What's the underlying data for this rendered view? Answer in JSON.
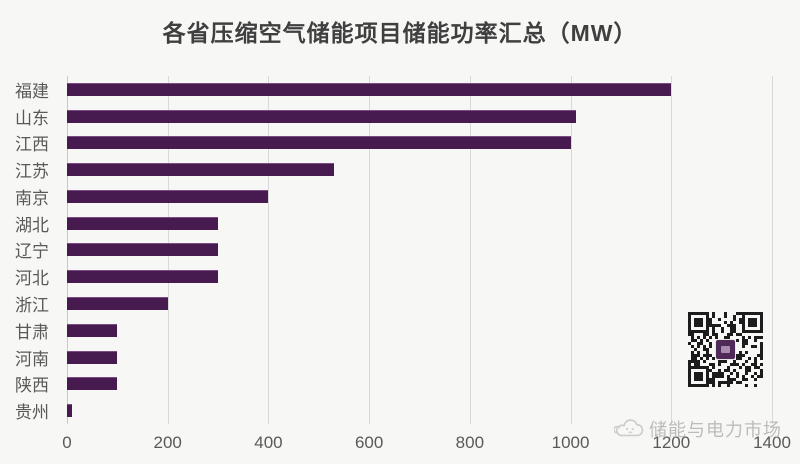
{
  "chart_data": {
    "type": "bar",
    "orientation": "horizontal",
    "title": "各省压缩空气储能项目储能功率汇总（MW）",
    "categories": [
      "福建",
      "山东",
      "江西",
      "江苏",
      "南京",
      "湖北",
      "辽宁",
      "河北",
      "浙江",
      "甘肃",
      "河南",
      "陕西",
      "贵州"
    ],
    "values": [
      1200,
      1010,
      1000,
      530,
      400,
      300,
      300,
      300,
      200,
      100,
      100,
      100,
      10
    ],
    "xlabel": "",
    "ylabel": "",
    "xlim": [
      0,
      1400
    ],
    "xticks": [
      0,
      200,
      400,
      600,
      800,
      1000,
      1200,
      1400
    ],
    "grid": true,
    "legend_position": "none"
  },
  "watermark": {
    "text": "储能与电力市场"
  },
  "qr": {
    "label": "wechat-qr-code"
  },
  "colors": {
    "background": "#f7f7f5",
    "bar": "#471b50",
    "bar_highlight": "#7d4a86",
    "gridline": "#d9d9d9",
    "axis_line": "#c9c9c9",
    "axis_text": "#595959",
    "title_text": "#3f3f3f",
    "watermark_text": "#bcbcbc",
    "qr_dark": "#1c1c1c",
    "qr_logo": "#4f2a58"
  }
}
